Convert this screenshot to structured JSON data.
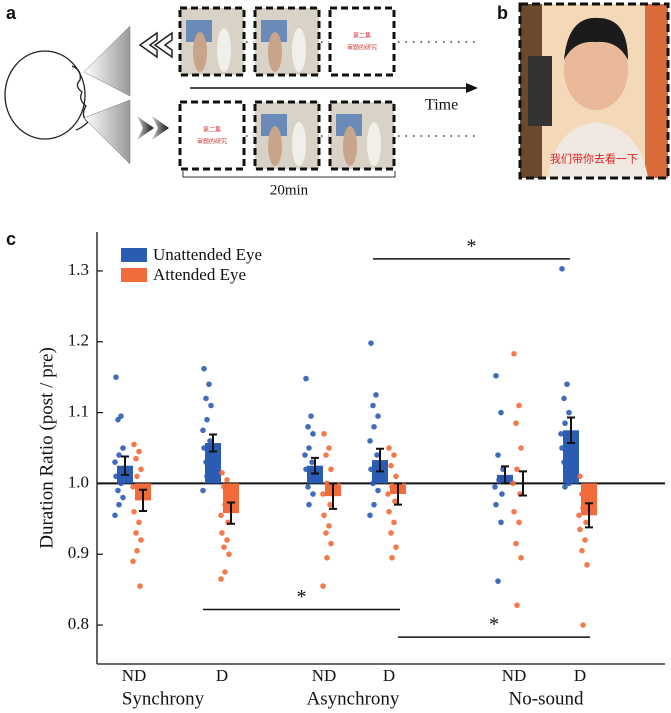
{
  "panel_a": {
    "label": "a",
    "frame_text": [
      "第二集",
      "审题的研究"
    ],
    "time_label": "Time",
    "duration_label": "20min"
  },
  "panel_b": {
    "label": "b",
    "subtitle": "我们带你去看一下"
  },
  "panel_c": {
    "label": "c"
  },
  "chart_data": {
    "type": "bar",
    "y_label": "Duration Ratio (post / pre)",
    "categories": [
      "ND",
      "D",
      "ND",
      "D",
      "ND",
      "D"
    ],
    "groups": [
      "Synchrony",
      "Asynchrony",
      "No-sound"
    ],
    "ylim": [
      0.745,
      1.355
    ],
    "yticks": [
      0.8,
      0.9,
      {
        "value": 1.0,
        "label": "1.0"
      },
      1.1,
      1.2,
      1.3
    ],
    "reference_line": 1.0,
    "legend": "upper left",
    "series": [
      {
        "name": "Unattended Eye",
        "color": "#2b5cb4",
        "values": [
          1.025,
          1.057,
          1.025,
          1.033,
          1.012,
          1.075
        ],
        "errors": [
          0.013,
          0.012,
          0.011,
          0.016,
          0.012,
          0.018
        ],
        "points": [
          [
            1.15,
            1.095,
            1.09,
            1.05,
            1.04,
            1.03,
            1.02,
            1.01,
            1.0,
            0.99,
            0.98,
            0.97,
            0.955
          ],
          [
            1.162,
            1.14,
            1.12,
            1.11,
            1.09,
            1.075,
            1.06,
            1.05,
            1.04,
            1.03,
            1.02,
            1.01,
            0.99
          ],
          [
            1.148,
            1.095,
            1.08,
            1.07,
            1.05,
            1.04,
            1.03,
            1.02,
            1.01,
            0.995,
            0.985,
            0.97
          ],
          [
            1.198,
            1.125,
            1.11,
            1.095,
            1.08,
            1.06,
            1.04,
            1.02,
            1.01,
            1.0,
            0.99,
            0.97,
            0.955
          ],
          [
            1.152,
            1.1,
            1.04,
            1.02,
            1.005,
            0.995,
            0.985,
            0.97,
            0.945,
            0.862
          ],
          [
            1.303,
            1.14,
            1.12,
            1.1,
            1.085,
            1.07,
            1.06,
            1.05,
            1.04,
            1.03,
            1.0,
            0.995
          ]
        ]
      },
      {
        "name": "Attended Eye",
        "color": "#f26b3a",
        "values": [
          0.976,
          0.958,
          0.982,
          0.985,
          1.0,
          0.955
        ],
        "errors": [
          0.015,
          0.015,
          0.018,
          0.015,
          0.017,
          0.017
        ],
        "points": [
          [
            1.055,
            1.045,
            1.035,
            1.02,
            1.01,
            0.995,
            0.98,
            0.96,
            0.945,
            0.93,
            0.92,
            0.905,
            0.89,
            0.855
          ],
          [
            1.015,
            1.005,
            0.995,
            0.985,
            0.97,
            0.955,
            0.945,
            0.93,
            0.92,
            0.91,
            0.9,
            0.875,
            0.865
          ],
          [
            1.07,
            1.05,
            1.04,
            1.02,
            1.0,
            0.985,
            0.97,
            0.955,
            0.94,
            0.93,
            0.915,
            0.895,
            0.855
          ],
          [
            1.05,
            1.04,
            1.025,
            1.01,
            0.995,
            0.985,
            0.975,
            0.96,
            0.945,
            0.93,
            0.91,
            0.895
          ],
          [
            1.183,
            1.11,
            1.085,
            1.05,
            1.02,
            1.0,
            0.985,
            0.96,
            0.945,
            0.915,
            0.895,
            0.828
          ],
          [
            1.01,
            0.995,
            0.985,
            0.975,
            0.965,
            0.955,
            0.945,
            0.935,
            0.92,
            0.905,
            0.885,
            0.8
          ]
        ]
      }
    ],
    "annotations": [
      {
        "label": "*",
        "y": 1.317
      },
      {
        "label": "*",
        "y": 0.822
      },
      {
        "label": "*",
        "y": 0.783
      }
    ]
  }
}
